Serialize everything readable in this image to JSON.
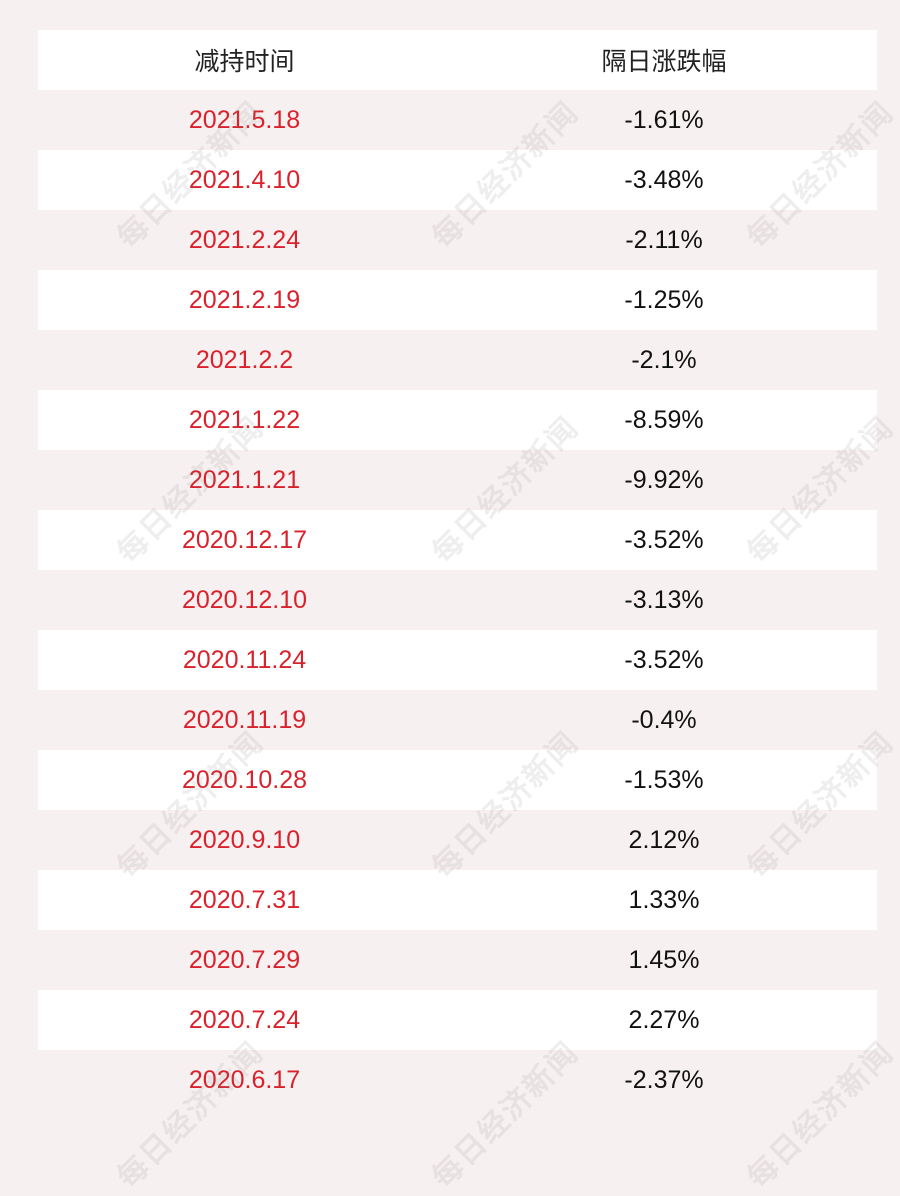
{
  "table": {
    "headers": {
      "date": "减持时间",
      "change": "隔日涨跌幅"
    },
    "rows": [
      {
        "date": "2021.5.18",
        "change": "-1.61%"
      },
      {
        "date": "2021.4.10",
        "change": "-3.48%"
      },
      {
        "date": "2021.2.24",
        "change": "-2.11%"
      },
      {
        "date": "2021.2.19",
        "change": "-1.25%"
      },
      {
        "date": "2021.2.2",
        "change": "-2.1%"
      },
      {
        "date": "2021.1.22",
        "change": "-8.59%"
      },
      {
        "date": "2021.1.21",
        "change": "-9.92%"
      },
      {
        "date": "2020.12.17",
        "change": "-3.52%"
      },
      {
        "date": "2020.12.10",
        "change": "-3.13%"
      },
      {
        "date": "2020.11.24",
        "change": "-3.52%"
      },
      {
        "date": "2020.11.19",
        "change": "-0.4%"
      },
      {
        "date": "2020.10.28",
        "change": "-1.53%"
      },
      {
        "date": "2020.9.10",
        "change": "2.12%"
      },
      {
        "date": "2020.7.31",
        "change": "1.33%"
      },
      {
        "date": "2020.7.29",
        "change": "1.45%"
      },
      {
        "date": "2020.7.24",
        "change": "2.27%"
      },
      {
        "date": "2020.6.17",
        "change": "-2.37%"
      }
    ]
  },
  "watermark": {
    "text": "每日经济新闻"
  },
  "colors": {
    "date_text": "#d9222c",
    "change_text": "#111111",
    "header_text": "#222222",
    "row_white": "#ffffff",
    "row_pink": "#f7f0f1"
  }
}
